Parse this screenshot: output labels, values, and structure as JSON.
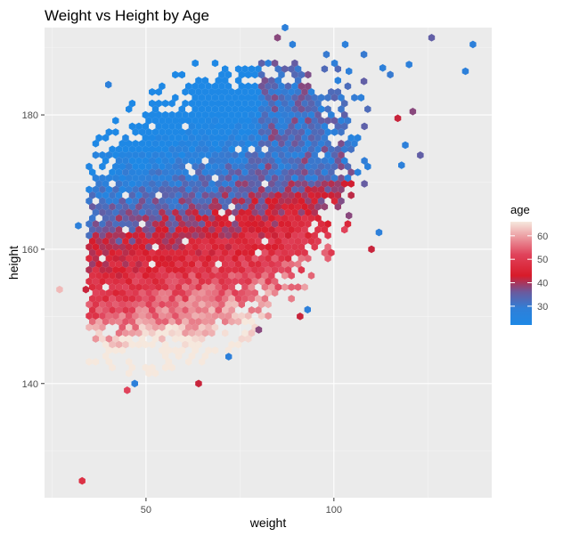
{
  "chart_data": {
    "type": "heatmap",
    "subtype": "hexbin",
    "title": "Weight vs Height by Age",
    "xlabel": "weight",
    "ylabel": "height",
    "xlim": [
      23,
      142
    ],
    "ylim": [
      123,
      193
    ],
    "x_ticks": [
      50,
      100
    ],
    "y_ticks": [
      140,
      160,
      180
    ],
    "grid": true,
    "legend": {
      "title": "age",
      "position": "right",
      "colorbar": {
        "min": 22,
        "max": 66,
        "ticks": [
          30,
          40,
          50,
          60
        ]
      },
      "color_stops": [
        {
          "value": 22,
          "color": "#1e88e5"
        },
        {
          "value": 29,
          "color": "#2f7fd8"
        },
        {
          "value": 36,
          "color": "#6a5a9e"
        },
        {
          "value": 43,
          "color": "#d81b2a"
        },
        {
          "value": 52,
          "color": "#e0435b"
        },
        {
          "value": 66,
          "color": "#f6e8dd"
        }
      ]
    },
    "regions": [
      {
        "x": [
          35,
          95
        ],
        "y": [
          163,
          188
        ],
        "mean_age": 28,
        "density": "high"
      },
      {
        "x": [
          42,
          82
        ],
        "y": [
          144,
          165
        ],
        "mean_age": 45,
        "density": "high"
      },
      {
        "x": [
          68,
          98
        ],
        "y": [
          158,
          175
        ],
        "mean_age": 40,
        "density": "medium"
      },
      {
        "x": [
          45,
          62
        ],
        "y": [
          141,
          150
        ],
        "mean_age": 55,
        "density": "medium"
      }
    ],
    "points": [
      {
        "x": 40,
        "y": 184.5,
        "age": 28
      },
      {
        "x": 126,
        "y": 191.5,
        "age": 35
      },
      {
        "x": 137,
        "y": 190.5,
        "age": 28
      },
      {
        "x": 135,
        "y": 186.5,
        "age": 28
      },
      {
        "x": 121,
        "y": 180.5,
        "age": 38
      },
      {
        "x": 117,
        "y": 179.5,
        "age": 42
      },
      {
        "x": 119,
        "y": 175.5,
        "age": 28
      },
      {
        "x": 118,
        "y": 172.5,
        "age": 28
      },
      {
        "x": 123,
        "y": 174,
        "age": 35
      },
      {
        "x": 112,
        "y": 162.5,
        "age": 28
      },
      {
        "x": 110,
        "y": 160,
        "age": 42
      },
      {
        "x": 104,
        "y": 165,
        "age": 38
      },
      {
        "x": 27,
        "y": 154,
        "age": 62
      },
      {
        "x": 32,
        "y": 163.5,
        "age": 28
      },
      {
        "x": 34,
        "y": 154,
        "age": 42
      },
      {
        "x": 33,
        "y": 125.5,
        "age": 48
      },
      {
        "x": 45,
        "y": 139,
        "age": 52
      },
      {
        "x": 47,
        "y": 140,
        "age": 28
      },
      {
        "x": 64,
        "y": 140,
        "age": 42
      },
      {
        "x": 72,
        "y": 144,
        "age": 28
      },
      {
        "x": 80,
        "y": 148,
        "age": 38
      },
      {
        "x": 91,
        "y": 150,
        "age": 42
      },
      {
        "x": 93,
        "y": 151,
        "age": 28
      },
      {
        "x": 104,
        "y": 186.5,
        "age": 28
      },
      {
        "x": 98,
        "y": 189,
        "age": 30
      },
      {
        "x": 108,
        "y": 189,
        "age": 30
      },
      {
        "x": 103,
        "y": 190.5,
        "age": 28
      },
      {
        "x": 108,
        "y": 185,
        "age": 35
      },
      {
        "x": 113,
        "y": 187,
        "age": 28
      },
      {
        "x": 115,
        "y": 186,
        "age": 30
      },
      {
        "x": 120,
        "y": 187.5,
        "age": 28
      },
      {
        "x": 87,
        "y": 193,
        "age": 28
      },
      {
        "x": 89,
        "y": 190.5,
        "age": 28
      },
      {
        "x": 85,
        "y": 191.5,
        "age": 38
      }
    ]
  }
}
